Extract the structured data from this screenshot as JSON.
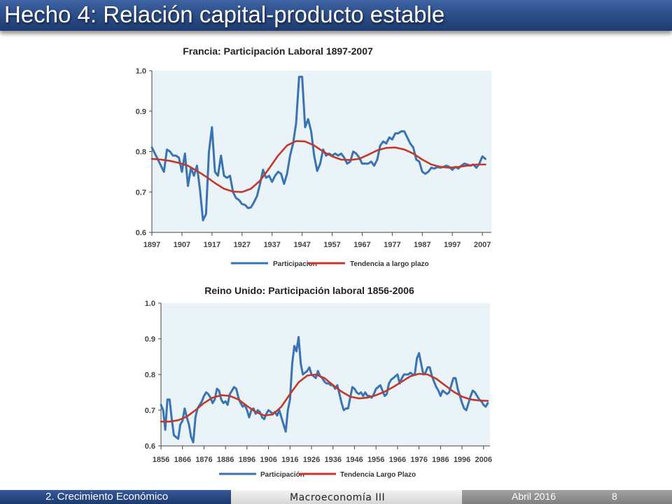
{
  "slide": {
    "title": "Hecho 4: Relación capital-producto estable",
    "footer_section": "2. Crecimiento Económico",
    "footer_course": "Macroeconomía III",
    "footer_date": "Abril 2016",
    "page_number": "8"
  },
  "colors": {
    "title_bar": "#2d4f8c",
    "plot_background": "#eaf4f8",
    "series_participacion": "#3a73b5",
    "series_tendencia": "#c0392b"
  },
  "chart_data": [
    {
      "type": "line",
      "title": "Francia: Participación Laboral 1897-2007",
      "xlabel": "",
      "ylabel": "",
      "xlim": [
        1897,
        2010
      ],
      "ylim": [
        0.6,
        1.0
      ],
      "yticks": [
        "0.6",
        "0.7",
        "0.8",
        "0.9",
        "1.0"
      ],
      "xticks": [
        "1897",
        "1907",
        "1917",
        "1927",
        "1937",
        "1947",
        "1957",
        "1967",
        "1977",
        "1987",
        "1997",
        "2007"
      ],
      "grid": false,
      "legend_position": "bottom",
      "series": [
        {
          "name": "Participacion",
          "x": [
            1897,
            1898,
            1899,
            1900,
            1901,
            1902,
            1903,
            1904,
            1905,
            1906,
            1907,
            1908,
            1909,
            1910,
            1911,
            1912,
            1913,
            1914,
            1915,
            1916,
            1917,
            1918,
            1919,
            1920,
            1921,
            1922,
            1923,
            1924,
            1925,
            1926,
            1927,
            1928,
            1929,
            1930,
            1931,
            1932,
            1933,
            1934,
            1935,
            1936,
            1937,
            1938,
            1939,
            1940,
            1941,
            1942,
            1943,
            1944,
            1945,
            1946,
            1947,
            1948,
            1949,
            1950,
            1951,
            1952,
            1953,
            1954,
            1955,
            1956,
            1957,
            1958,
            1959,
            1960,
            1961,
            1962,
            1963,
            1964,
            1965,
            1966,
            1967,
            1968,
            1969,
            1970,
            1971,
            1972,
            1973,
            1974,
            1975,
            1976,
            1977,
            1978,
            1979,
            1980,
            1981,
            1982,
            1983,
            1984,
            1985,
            1986,
            1987,
            1988,
            1989,
            1990,
            1991,
            1992,
            1993,
            1994,
            1995,
            1996,
            1997,
            1998,
            1999,
            2000,
            2001,
            2002,
            2003,
            2004,
            2005,
            2006,
            2007,
            2008
          ],
          "values": [
            0.81,
            0.795,
            0.78,
            0.765,
            0.75,
            0.805,
            0.8,
            0.79,
            0.79,
            0.785,
            0.75,
            0.795,
            0.715,
            0.76,
            0.74,
            0.765,
            0.705,
            0.63,
            0.645,
            0.8,
            0.86,
            0.75,
            0.74,
            0.79,
            0.74,
            0.735,
            0.74,
            0.7,
            0.685,
            0.68,
            0.67,
            0.668,
            0.66,
            0.662,
            0.675,
            0.69,
            0.72,
            0.755,
            0.735,
            0.74,
            0.725,
            0.74,
            0.75,
            0.745,
            0.72,
            0.745,
            0.79,
            0.82,
            0.87,
            0.985,
            0.985,
            0.86,
            0.88,
            0.85,
            0.79,
            0.752,
            0.77,
            0.805,
            0.79,
            0.795,
            0.79,
            0.795,
            0.79,
            0.795,
            0.785,
            0.77,
            0.775,
            0.8,
            0.795,
            0.785,
            0.77,
            0.77,
            0.77,
            0.775,
            0.765,
            0.78,
            0.815,
            0.825,
            0.82,
            0.835,
            0.83,
            0.845,
            0.845,
            0.85,
            0.85,
            0.835,
            0.82,
            0.81,
            0.78,
            0.775,
            0.75,
            0.745,
            0.75,
            0.76,
            0.758,
            0.762,
            0.76,
            0.762,
            0.765,
            0.762,
            0.755,
            0.762,
            0.758,
            0.765,
            0.77,
            0.768,
            0.765,
            0.768,
            0.76,
            0.77,
            0.788,
            0.782
          ]
        },
        {
          "name": "Tendencia a largo plazo",
          "x": [
            1897,
            1900,
            1903,
            1906,
            1909,
            1912,
            1915,
            1918,
            1921,
            1924,
            1927,
            1930,
            1933,
            1936,
            1939,
            1942,
            1945,
            1948,
            1951,
            1954,
            1957,
            1960,
            1963,
            1966,
            1969,
            1972,
            1975,
            1978,
            1981,
            1984,
            1987,
            1990,
            1993,
            1996,
            1999,
            2002,
            2005,
            2008
          ],
          "values": [
            0.782,
            0.78,
            0.777,
            0.772,
            0.765,
            0.752,
            0.738,
            0.722,
            0.708,
            0.701,
            0.7,
            0.708,
            0.728,
            0.758,
            0.79,
            0.815,
            0.826,
            0.825,
            0.815,
            0.8,
            0.788,
            0.78,
            0.779,
            0.782,
            0.792,
            0.803,
            0.809,
            0.81,
            0.805,
            0.795,
            0.78,
            0.768,
            0.762,
            0.76,
            0.762,
            0.765,
            0.768,
            0.768
          ]
        }
      ]
    },
    {
      "type": "line",
      "title": "Reino Unido: Participación laboral 1856-2006",
      "xlabel": "",
      "ylabel": "",
      "xlim": [
        1856,
        2009
      ],
      "ylim": [
        0.6,
        1.0
      ],
      "yticks": [
        "0.6",
        "0.7",
        "0.8",
        "0.9",
        "1.0"
      ],
      "xticks": [
        "1856",
        "1866",
        "1876",
        "1886",
        "1896",
        "1906",
        "1916",
        "1926",
        "1936",
        "1946",
        "1956",
        "1966",
        "1976",
        "1986",
        "1996",
        "2006"
      ],
      "grid": false,
      "legend_position": "bottom",
      "series": [
        {
          "name": "Participación",
          "x": [
            1856,
            1857,
            1858,
            1859,
            1860,
            1861,
            1862,
            1863,
            1864,
            1865,
            1866,
            1867,
            1868,
            1869,
            1870,
            1871,
            1872,
            1873,
            1874,
            1875,
            1876,
            1877,
            1878,
            1879,
            1880,
            1881,
            1882,
            1883,
            1884,
            1885,
            1886,
            1887,
            1888,
            1889,
            1890,
            1891,
            1892,
            1893,
            1894,
            1895,
            1896,
            1897,
            1898,
            1899,
            1900,
            1901,
            1902,
            1903,
            1904,
            1905,
            1906,
            1907,
            1908,
            1909,
            1910,
            1911,
            1912,
            1913,
            1914,
            1915,
            1916,
            1917,
            1918,
            1919,
            1920,
            1921,
            1922,
            1923,
            1924,
            1925,
            1926,
            1927,
            1928,
            1929,
            1930,
            1931,
            1932,
            1933,
            1934,
            1935,
            1936,
            1937,
            1938,
            1939,
            1940,
            1941,
            1942,
            1943,
            1944,
            1945,
            1946,
            1947,
            1948,
            1949,
            1950,
            1951,
            1952,
            1953,
            1954,
            1955,
            1956,
            1957,
            1958,
            1959,
            1960,
            1961,
            1962,
            1963,
            1964,
            1965,
            1966,
            1967,
            1968,
            1969,
            1970,
            1971,
            1972,
            1973,
            1974,
            1975,
            1976,
            1977,
            1978,
            1979,
            1980,
            1981,
            1982,
            1983,
            1984,
            1985,
            1986,
            1987,
            1988,
            1989,
            1990,
            1991,
            1992,
            1993,
            1994,
            1995,
            1996,
            1997,
            1998,
            1999,
            2000,
            2001,
            2002,
            2003,
            2004,
            2005,
            2006,
            2007,
            2008
          ],
          "values": [
            0.715,
            0.7,
            0.645,
            0.73,
            0.73,
            0.675,
            0.63,
            0.625,
            0.62,
            0.66,
            0.67,
            0.705,
            0.68,
            0.66,
            0.625,
            0.61,
            0.68,
            0.705,
            0.715,
            0.725,
            0.74,
            0.75,
            0.745,
            0.735,
            0.72,
            0.73,
            0.76,
            0.755,
            0.73,
            0.72,
            0.725,
            0.715,
            0.745,
            0.755,
            0.765,
            0.76,
            0.735,
            0.72,
            0.71,
            0.715,
            0.7,
            0.68,
            0.7,
            0.705,
            0.69,
            0.7,
            0.695,
            0.68,
            0.675,
            0.69,
            0.7,
            0.695,
            0.69,
            0.695,
            0.685,
            0.7,
            0.68,
            0.66,
            0.64,
            0.7,
            0.73,
            0.83,
            0.88,
            0.865,
            0.905,
            0.83,
            0.8,
            0.805,
            0.81,
            0.82,
            0.8,
            0.795,
            0.79,
            0.81,
            0.795,
            0.79,
            0.78,
            0.775,
            0.775,
            0.77,
            0.77,
            0.76,
            0.77,
            0.745,
            0.72,
            0.7,
            0.705,
            0.705,
            0.735,
            0.765,
            0.76,
            0.75,
            0.745,
            0.75,
            0.74,
            0.75,
            0.74,
            0.74,
            0.735,
            0.745,
            0.76,
            0.765,
            0.77,
            0.755,
            0.74,
            0.745,
            0.775,
            0.785,
            0.79,
            0.795,
            0.8,
            0.775,
            0.79,
            0.8,
            0.8,
            0.8,
            0.805,
            0.8,
            0.8,
            0.845,
            0.86,
            0.83,
            0.8,
            0.805,
            0.82,
            0.82,
            0.795,
            0.78,
            0.765,
            0.755,
            0.74,
            0.755,
            0.75,
            0.745,
            0.75,
            0.77,
            0.79,
            0.79,
            0.76,
            0.74,
            0.72,
            0.705,
            0.7,
            0.72,
            0.74,
            0.755,
            0.75,
            0.74,
            0.73,
            0.725,
            0.715,
            0.71,
            0.72
          ]
        },
        {
          "name": "Tendencia Largo Plazo",
          "x": [
            1856,
            1860,
            1864,
            1868,
            1872,
            1876,
            1880,
            1884,
            1888,
            1892,
            1896,
            1900,
            1904,
            1908,
            1912,
            1916,
            1920,
            1924,
            1928,
            1932,
            1936,
            1940,
            1944,
            1948,
            1952,
            1956,
            1960,
            1964,
            1968,
            1972,
            1976,
            1980,
            1984,
            1988,
            1992,
            1996,
            2000,
            2004,
            2008
          ],
          "values": [
            0.668,
            0.668,
            0.672,
            0.682,
            0.7,
            0.72,
            0.735,
            0.742,
            0.74,
            0.73,
            0.712,
            0.695,
            0.685,
            0.688,
            0.71,
            0.745,
            0.778,
            0.797,
            0.8,
            0.79,
            0.77,
            0.752,
            0.738,
            0.733,
            0.735,
            0.742,
            0.752,
            0.765,
            0.78,
            0.795,
            0.802,
            0.8,
            0.788,
            0.77,
            0.752,
            0.738,
            0.73,
            0.727,
            0.726
          ]
        }
      ]
    }
  ]
}
